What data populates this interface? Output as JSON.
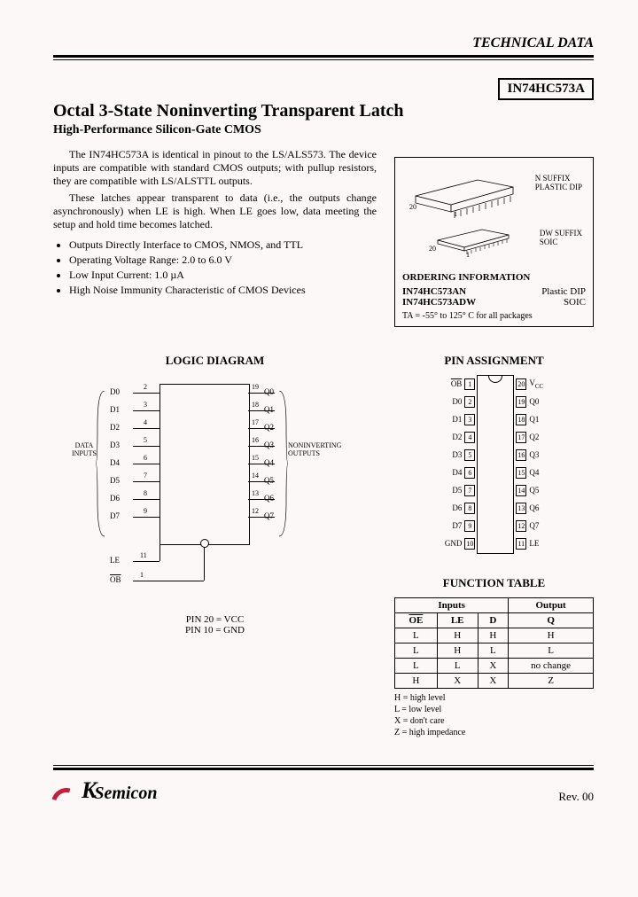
{
  "header": {
    "section": "TECHNICAL DATA"
  },
  "part": {
    "number": "IN74HC573A"
  },
  "title": {
    "main": "Octal 3-State Noninverting Transparent Latch",
    "sub": "High-Performance Silicon-Gate CMOS"
  },
  "description": {
    "p1": "The IN74HC573A is identical in pinout to the LS/ALS573. The device inputs are compatible with standard CMOS outputs; with pullup resistors, they are compatible with LS/ALSTTL outputs.",
    "p2": "These latches appear transparent to data (i.e., the outputs change asynchronously) when LE is high. When LE goes low, data meeting the setup and hold time becomes latched."
  },
  "features": [
    "Outputs Directly Interface to CMOS, NMOS, and TTL",
    "Operating Voltage Range: 2.0 to 6.0 V",
    "Low Input Current: 1.0 µA",
    "High Noise Immunity Characteristic of CMOS Devices"
  ],
  "package": {
    "n_suffix": "N SUFFIX",
    "n_type": "PLASTIC DIP",
    "dw_suffix": "DW SUFFIX",
    "dw_type": "SOIC",
    "pin20": "20",
    "pin1": "1"
  },
  "ordering": {
    "title": "ORDERING INFORMATION",
    "rows": [
      {
        "pn": "IN74HC573AN",
        "pkg": "Plastic DIP"
      },
      {
        "pn": "IN74HC573ADW",
        "pkg": "SOIC"
      }
    ],
    "temp": "TA = -55° to 125° C for all packages"
  },
  "logic": {
    "title": "LOGIC DIAGRAM",
    "left_label": "DATA INPUTS",
    "right_label": "NONINVERTING OUTPUTS",
    "inputs": [
      {
        "name": "D0",
        "pin": "2"
      },
      {
        "name": "D1",
        "pin": "3"
      },
      {
        "name": "D2",
        "pin": "4"
      },
      {
        "name": "D3",
        "pin": "5"
      },
      {
        "name": "D4",
        "pin": "6"
      },
      {
        "name": "D5",
        "pin": "7"
      },
      {
        "name": "D6",
        "pin": "8"
      },
      {
        "name": "D7",
        "pin": "9"
      }
    ],
    "outputs": [
      {
        "name": "Q0",
        "pin": "19"
      },
      {
        "name": "Q1",
        "pin": "18"
      },
      {
        "name": "Q2",
        "pin": "17"
      },
      {
        "name": "Q3",
        "pin": "16"
      },
      {
        "name": "Q4",
        "pin": "15"
      },
      {
        "name": "Q5",
        "pin": "14"
      },
      {
        "name": "Q6",
        "pin": "13"
      },
      {
        "name": "Q7",
        "pin": "12"
      }
    ],
    "le": {
      "name": "LE",
      "pin": "11"
    },
    "ob": {
      "name": "OB",
      "pin": "1"
    },
    "notes": [
      "PIN 20 = VCC",
      "PIN 10 = GND"
    ]
  },
  "pinout": {
    "title": "PIN ASSIGNMENT",
    "left": [
      {
        "n": "1",
        "lbl": "OB"
      },
      {
        "n": "2",
        "lbl": "D0"
      },
      {
        "n": "3",
        "lbl": "D1"
      },
      {
        "n": "4",
        "lbl": "D2"
      },
      {
        "n": "5",
        "lbl": "D3"
      },
      {
        "n": "6",
        "lbl": "D4"
      },
      {
        "n": "7",
        "lbl": "D5"
      },
      {
        "n": "8",
        "lbl": "D6"
      },
      {
        "n": "9",
        "lbl": "D7"
      },
      {
        "n": "10",
        "lbl": "GND"
      }
    ],
    "right": [
      {
        "n": "20",
        "lbl": "VCC"
      },
      {
        "n": "19",
        "lbl": "Q0"
      },
      {
        "n": "18",
        "lbl": "Q1"
      },
      {
        "n": "17",
        "lbl": "Q2"
      },
      {
        "n": "16",
        "lbl": "Q3"
      },
      {
        "n": "15",
        "lbl": "Q4"
      },
      {
        "n": "14",
        "lbl": "Q5"
      },
      {
        "n": "13",
        "lbl": "Q6"
      },
      {
        "n": "12",
        "lbl": "Q7"
      },
      {
        "n": "11",
        "lbl": "LE"
      }
    ]
  },
  "functable": {
    "title": "FUNCTION TABLE",
    "group_headers": {
      "inputs": "Inputs",
      "output": "Output"
    },
    "headers": [
      "OE",
      "LE",
      "D",
      "Q"
    ],
    "rows": [
      [
        "L",
        "H",
        "H",
        "H"
      ],
      [
        "L",
        "H",
        "L",
        "L"
      ],
      [
        "L",
        "L",
        "X",
        "no change"
      ],
      [
        "H",
        "X",
        "X",
        "Z"
      ]
    ],
    "legend": [
      "H = high level",
      "L = low level",
      "X = don't care",
      "Z = high impedance"
    ]
  },
  "footer": {
    "logo_text": "Semicon",
    "logo_k": "K",
    "rev": "Rev. 00"
  }
}
